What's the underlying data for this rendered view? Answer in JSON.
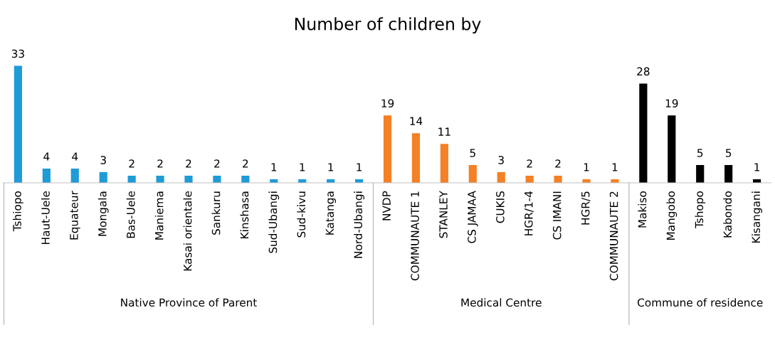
{
  "chart_data": {
    "type": "bar",
    "title": "Number of children by",
    "categories": [
      "Tshiopo",
      "Haut-Uele",
      "Equateur",
      "Mongala",
      "Bas-Uele",
      "Maniema",
      "Kasai orientale",
      "Sankuru",
      "Kinshasa",
      "Sud-Ubangi",
      "Sud-kivu",
      "Katanga",
      "Nord-Ubangi",
      "NVDP",
      "COMMUNAUTE 1",
      "STANLEY",
      "CS JAMAA",
      "CUKIS",
      "HGR/1-4",
      "CS IMANI",
      "HGR/5",
      "COMMUNAUTE 2",
      "Makiso",
      "Mangobo",
      "Tshopo",
      "Kabondo",
      "Kisangani"
    ],
    "values": [
      33,
      4,
      4,
      3,
      2,
      2,
      2,
      2,
      2,
      1,
      1,
      1,
      1,
      19,
      14,
      11,
      5,
      3,
      2,
      2,
      1,
      1,
      28,
      19,
      5,
      5,
      1
    ],
    "colors": [
      "#1f9bd7",
      "#1f9bd7",
      "#1f9bd7",
      "#1f9bd7",
      "#1f9bd7",
      "#1f9bd7",
      "#1f9bd7",
      "#1f9bd7",
      "#1f9bd7",
      "#1f9bd7",
      "#1f9bd7",
      "#1f9bd7",
      "#1f9bd7",
      "#f58025",
      "#f58025",
      "#f58025",
      "#f58025",
      "#f58025",
      "#f58025",
      "#f58025",
      "#f58025",
      "#f58025",
      "#000000",
      "#000000",
      "#000000",
      "#000000",
      "#000000"
    ],
    "data_labels": true,
    "annotations": [
      "Native Province of Parent",
      "Medical Centre",
      "Commune of residence"
    ]
  }
}
